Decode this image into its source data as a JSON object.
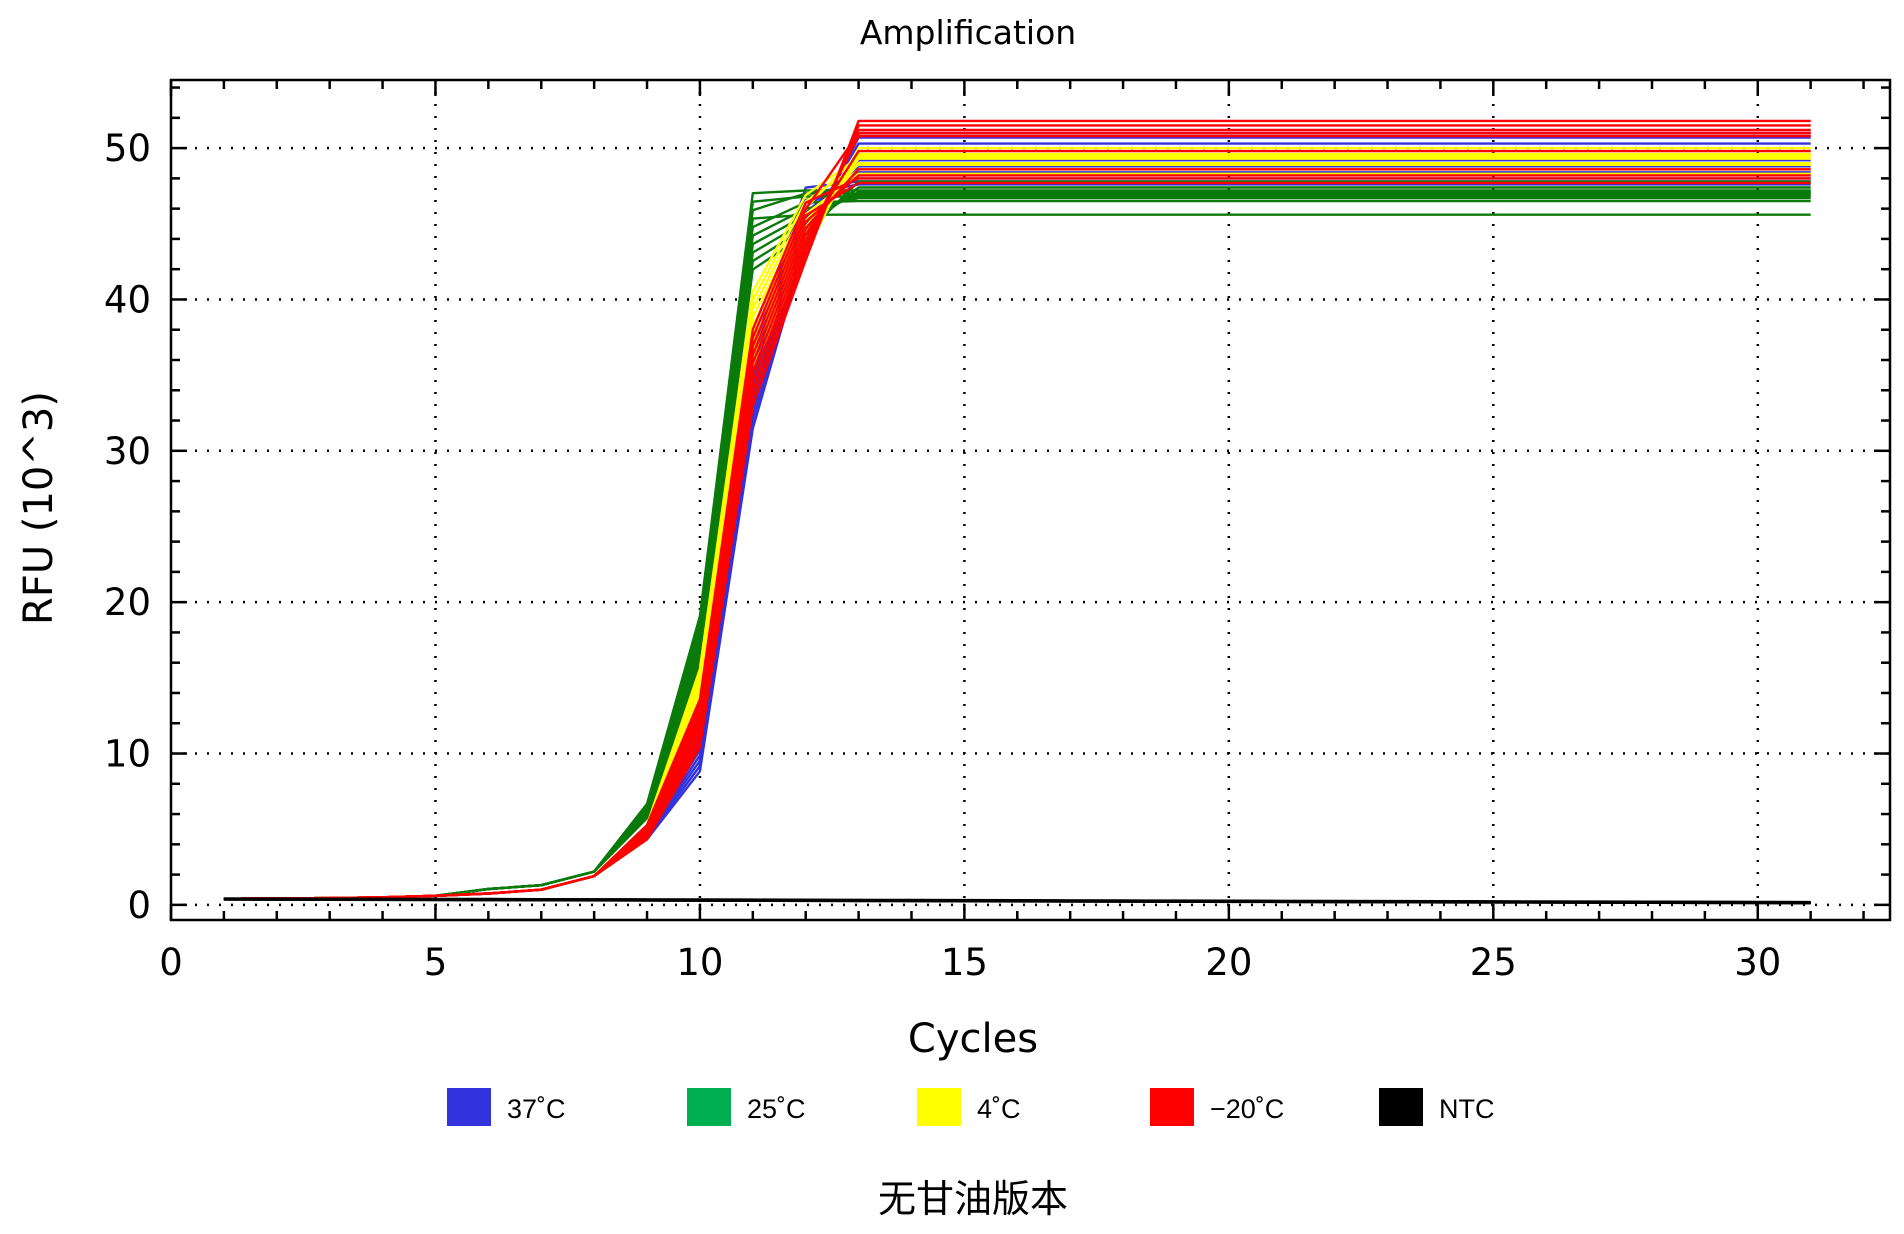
{
  "chart_data": {
    "type": "line",
    "title": "Amplification",
    "xlabel": "Cycles",
    "ylabel": "RFU (10^3)",
    "xlim": [
      0,
      32.5
    ],
    "ylim": [
      -1,
      54.5
    ],
    "xticks": [
      0,
      5,
      10,
      15,
      20,
      25,
      30
    ],
    "yticks": [
      0,
      10,
      20,
      30,
      40,
      50
    ],
    "grid": true,
    "legend_position": "bottom",
    "footer": "无甘油版本",
    "x": [
      1,
      2,
      3,
      4,
      5,
      6,
      7,
      8,
      9,
      10,
      11,
      12,
      13,
      14,
      15,
      16,
      17,
      18,
      19,
      20,
      21,
      22,
      23,
      24,
      25,
      26,
      27,
      28,
      29,
      30,
      31
    ],
    "groups": [
      {
        "name": "37˚C",
        "color": "#3333dd",
        "shape": {
          "plateau": [
            51.0,
            50.7,
            50.3,
            49.6,
            49.2,
            48.8,
            48.4,
            48.0,
            47.6,
            47.8
          ],
          "c10": 10.4,
          "c11": 34.0,
          "c12": 45.5,
          "late": 0
        }
      },
      {
        "name": "25˚C",
        "color": "#0a7a0a",
        "shape": {
          "plateau": [
            47.8,
            47.4,
            47.1,
            46.9,
            46.7,
            46.5,
            45.6,
            47.0,
            46.8,
            47.2
          ],
          "c10": 17.5,
          "c11": 44.5,
          "c12": 46.2,
          "late": 0
        }
      },
      {
        "name": "4˚C",
        "color": "#ffff00",
        "shape": {
          "plateau": [
            50.0,
            49.8,
            49.5,
            49.3,
            49.0,
            48.6,
            48.3,
            49.6,
            48.9,
            49.4
          ],
          "c10": 14.0,
          "c11": 38.0,
          "c12": 45.0,
          "late": 0
        }
      },
      {
        "name": "−20˚C",
        "color": "#ff0000",
        "shape": {
          "plateau": [
            51.8,
            51.5,
            51.2,
            50.8,
            49.8,
            48.6,
            48.2,
            47.7,
            51.0,
            48.0
          ],
          "c10": 12.0,
          "c11": 35.5,
          "c12": 44.5,
          "late": 0
        }
      },
      {
        "name": "NTC",
        "color": "#000000",
        "shape": {
          "plateau": [
            0.1,
            0.05,
            0.0,
            0.15,
            0.08,
            0.12,
            0.03,
            0.06,
            0.1,
            0.02
          ],
          "flat": true
        }
      }
    ]
  },
  "legend": [
    {
      "label": "37˚C",
      "color": "#3333dd"
    },
    {
      "label": "25˚C",
      "color": "#00b050"
    },
    {
      "label": "4˚C",
      "color": "#ffff00"
    },
    {
      "label": "−20˚C",
      "color": "#ff0000"
    },
    {
      "label": "NTC",
      "color": "#000000"
    }
  ]
}
